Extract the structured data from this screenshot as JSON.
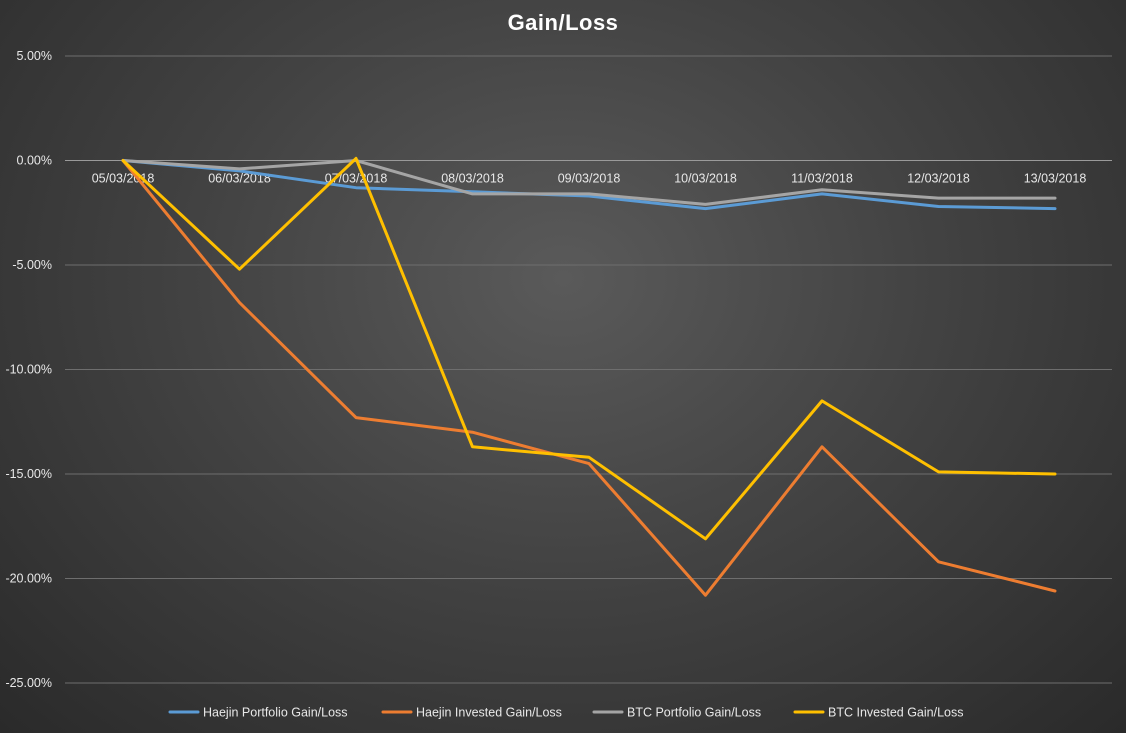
{
  "chart_data": {
    "type": "line",
    "title": "Gain/Loss",
    "xlabel": "",
    "ylabel": "",
    "ylim": [
      -25,
      5
    ],
    "y_ticks": [
      5,
      0,
      -5,
      -10,
      -15,
      -20,
      -25
    ],
    "y_tick_labels": [
      "5.00%",
      "0.00%",
      "-5.00%",
      "-10.00%",
      "-15.00%",
      "-20.00%",
      "-25.00%"
    ],
    "categories": [
      "05/03/2018",
      "06/03/2018",
      "07/03/2018",
      "08/03/2018",
      "09/03/2018",
      "10/03/2018",
      "11/03/2018",
      "12/03/2018",
      "13/03/2018"
    ],
    "grid": true,
    "legend_position": "bottom",
    "series": [
      {
        "name": "Haejin Portfolio Gain/Loss",
        "color": "#5b9bd5",
        "values": [
          0.0,
          -0.5,
          -1.3,
          -1.5,
          -1.7,
          -2.3,
          -1.6,
          -2.2,
          -2.3
        ]
      },
      {
        "name": "Haejin Invested Gain/Loss",
        "color": "#ed7d31",
        "values": [
          0.0,
          -6.8,
          -12.3,
          -13.0,
          -14.5,
          -20.8,
          -13.7,
          -19.2,
          -20.6
        ]
      },
      {
        "name": "BTC Portfolio Gain/Loss",
        "color": "#a5a5a5",
        "values": [
          0.0,
          -0.4,
          0.0,
          -1.6,
          -1.6,
          -2.1,
          -1.4,
          -1.8,
          -1.8
        ]
      },
      {
        "name": "BTC Invested Gain/Loss",
        "color": "#ffc000",
        "values": [
          0.0,
          -5.2,
          0.1,
          -13.7,
          -14.2,
          -18.1,
          -11.5,
          -14.9,
          -15.0
        ]
      }
    ]
  }
}
